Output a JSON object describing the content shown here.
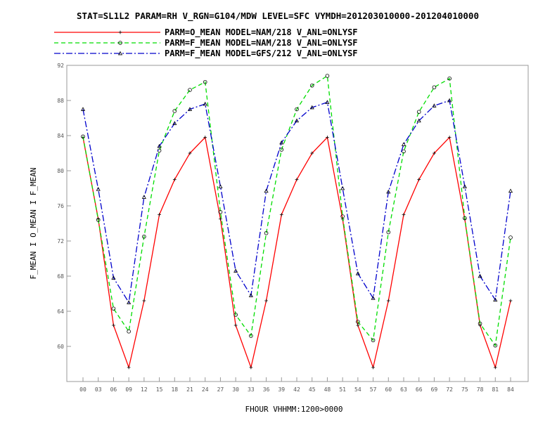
{
  "chart_data": {
    "type": "line",
    "title": "STAT=SL1L2 PARAM=RH V_RGN=G104/MDW LEVEL=SFC VYMDH=201203010000-201204010000",
    "xlabel": "FHOUR VHHMM:1200>0000",
    "ylabel": "F_MEAN I O_MEAN I F_MEAN",
    "categories": [
      "00",
      "03",
      "06",
      "09",
      "12",
      "15",
      "18",
      "21",
      "24",
      "27",
      "30",
      "33",
      "36",
      "39",
      "42",
      "45",
      "48",
      "51",
      "54",
      "57",
      "60",
      "63",
      "66",
      "69",
      "72",
      "75",
      "78",
      "81",
      "84"
    ],
    "ylim": [
      56,
      92
    ],
    "yticks": [
      60,
      64,
      68,
      72,
      76,
      80,
      84,
      88,
      92
    ],
    "grid": false,
    "legend_position": "top",
    "series": [
      {
        "name": "PARM=O_MEAN MODEL=NAM/218 V_ANL=ONLYSF",
        "color": "#ff0000",
        "style": "solid",
        "marker": "plus",
        "values": [
          83.8,
          74.5,
          62.4,
          57.6,
          65.2,
          75.0,
          79.0,
          82.0,
          83.8,
          74.5,
          62.4,
          57.6,
          65.2,
          75.0,
          79.0,
          82.0,
          83.8,
          74.5,
          62.4,
          57.6,
          65.2,
          75.0,
          79.0,
          82.0,
          83.8,
          74.5,
          62.4,
          57.6,
          65.2
        ]
      },
      {
        "name": "PARM=F_MEAN MODEL=NAM/218 V_ANL=ONLYSF",
        "color": "#00dd00",
        "style": "dashed",
        "marker": "circle",
        "values": [
          83.9,
          74.4,
          64.3,
          61.7,
          72.5,
          82.3,
          86.8,
          89.2,
          90.1,
          75.3,
          63.6,
          61.2,
          72.9,
          82.4,
          87.0,
          89.7,
          90.8,
          74.8,
          62.8,
          60.7,
          73.0,
          82.2,
          86.7,
          89.5,
          90.5,
          74.6,
          62.6,
          60.1,
          72.4
        ]
      },
      {
        "name": "PARM=F_MEAN MODEL=GFS/212 V_ANL=ONLYSF",
        "color": "#0000cc",
        "style": "dashdot",
        "marker": "triangle",
        "values": [
          87.0,
          77.9,
          67.8,
          65.0,
          77.0,
          82.8,
          85.4,
          87.0,
          87.6,
          78.2,
          68.6,
          65.8,
          77.7,
          83.2,
          85.7,
          87.2,
          87.8,
          78.0,
          68.3,
          65.5,
          77.6,
          83.0,
          85.7,
          87.4,
          88.0,
          78.2,
          68.0,
          65.3,
          77.7
        ]
      }
    ]
  }
}
